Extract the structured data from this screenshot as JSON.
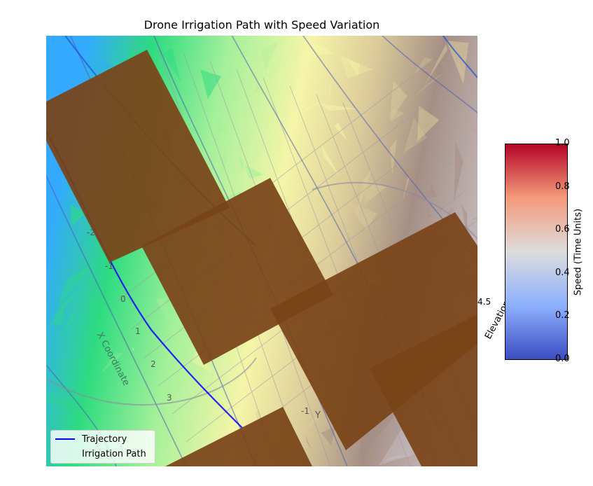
{
  "chart_data": {
    "type": "3d-surface",
    "title": "Drone Irrigation Path with Speed Variation",
    "axes": {
      "x_label": "X Coordinate",
      "y_label": "Y",
      "z_label": "Elevation",
      "x_ticks": [
        "-2",
        "-1",
        "0",
        "1",
        "2",
        "3"
      ],
      "y_ticks": [
        "-1"
      ],
      "z_tick_fragment": "4.5"
    },
    "legend": {
      "placement": "lower-left",
      "entries": [
        {
          "label": "Trajectory",
          "color": "#0000ff"
        },
        {
          "label": "Irrigation Path",
          "color": "#8b4513"
        }
      ]
    },
    "colorbar": {
      "label": "Speed (Time Units)",
      "colormap": "coolwarm",
      "range": [
        0.0,
        1.0
      ],
      "ticks": [
        "0.0",
        "0.2",
        "0.4",
        "0.6",
        "0.8",
        "1.0"
      ]
    },
    "surface": {
      "colormap": "terrain",
      "colors": [
        "#33aaff",
        "#2edb80",
        "#a4f09a",
        "#f5f5a8",
        "#dccb9a",
        "#a58f85",
        "#c9c0c4"
      ]
    },
    "irrigation_color": "#7a4419"
  }
}
